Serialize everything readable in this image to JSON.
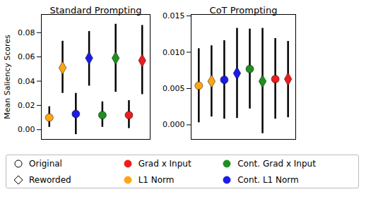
{
  "chart_data": {
    "type": "scatter",
    "ylabel": "Mean Saliency Scores",
    "legend": "bottom",
    "tick_labels": "y",
    "categories": [
      "Original",
      "Reworded"
    ],
    "marker": [
      "circle",
      "diamond"
    ],
    "xlim": [
      -0.6,
      7.6
    ],
    "series": [
      {
        "name": "Grad x Input",
        "color": "#ee1c1c",
        "x": [
          6,
          7
        ]
      },
      {
        "name": "L1 Norm",
        "color": "#ffa514",
        "x": [
          0,
          1
        ]
      },
      {
        "name": "Cont. Grad x Input",
        "color": "#1f8f1f",
        "x": [
          4,
          5
        ]
      },
      {
        "name": "Cont. L1 Norm",
        "color": "#1c1ce6",
        "x": [
          2,
          3
        ]
      }
    ],
    "panels": [
      {
        "title": "Standard Prompting",
        "ylim": [
          -0.008,
          0.095
        ],
        "yticks": [
          {
            "value": 0,
            "label": "0.00"
          },
          {
            "value": 0.02,
            "label": "0.02"
          },
          {
            "value": 0.04,
            "label": "0.04"
          },
          {
            "value": 0.06,
            "label": "0.06"
          },
          {
            "value": 0.08,
            "label": "0.08"
          }
        ],
        "values": [
          [
            0.012,
            0.057
          ],
          [
            0.01,
            0.051
          ],
          [
            0.012,
            0.059
          ],
          [
            0.013,
            0.059
          ]
        ],
        "error_low": [
          [
            0.001,
            0.029
          ],
          [
            0.002,
            0.03
          ],
          [
            0.002,
            0.031
          ],
          [
            -0.004,
            0.036
          ]
        ],
        "error_high": [
          [
            0.024,
            0.086
          ],
          [
            0.019,
            0.073
          ],
          [
            0.023,
            0.087
          ],
          [
            0.03,
            0.081
          ]
        ]
      },
      {
        "title": "CoT Prompting",
        "ylim": [
          -0.002,
          0.0152
        ],
        "yticks": [
          {
            "value": 0,
            "label": "0.000"
          },
          {
            "value": 0.005,
            "label": "0.005"
          },
          {
            "value": 0.01,
            "label": "0.010"
          },
          {
            "value": 0.015,
            "label": "0.015"
          }
        ],
        "values": [
          [
            0.0063,
            0.0063
          ],
          [
            0.0054,
            0.006
          ],
          [
            0.0077,
            0.006
          ],
          [
            0.0062,
            0.0071
          ]
        ],
        "error_low": [
          [
            0.0008,
            0.001
          ],
          [
            0.0003,
            0.0011
          ],
          [
            0.0022,
            -0.0012
          ],
          [
            0.0008,
            0.0009
          ]
        ],
        "error_high": [
          [
            0.0119,
            0.0115
          ],
          [
            0.0105,
            0.0109
          ],
          [
            0.0132,
            0.0133
          ],
          [
            0.0116,
            0.0133
          ]
        ]
      }
    ]
  }
}
